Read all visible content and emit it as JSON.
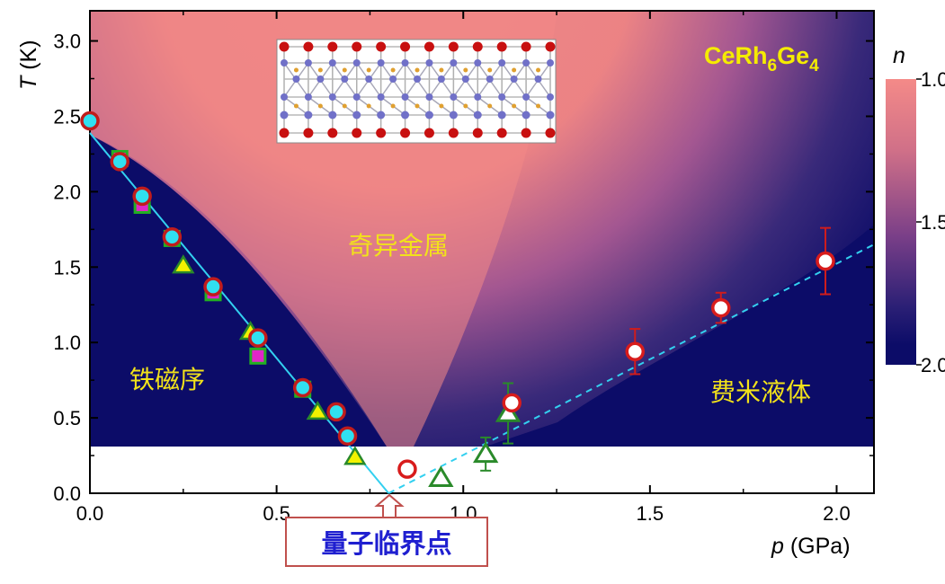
{
  "chart_data": {
    "type": "scatter",
    "compound_label": {
      "main": "CeRh",
      "sub1": "6",
      "mid": "Ge",
      "sub2": "4"
    },
    "xlabel": {
      "italic": "p",
      "unit": " (GPa)"
    },
    "ylabel": {
      "italic": "T",
      "unit": " (K)"
    },
    "xlim": [
      0,
      2.1
    ],
    "ylim": [
      0,
      3.2
    ],
    "xticks": [
      "0.0",
      "0.5",
      "1.0",
      "1.5",
      "2.0"
    ],
    "xtick_values": [
      0,
      0.5,
      1.0,
      1.5,
      2.0
    ],
    "yticks": [
      "0.0",
      "0.5",
      "1.0",
      "1.5",
      "2.0",
      "2.5",
      "3.0"
    ],
    "ytick_values": [
      0,
      0.5,
      1.0,
      1.5,
      2.0,
      2.5,
      3.0
    ],
    "colorbar": {
      "label": "n",
      "ticks": [
        "1.0",
        "1.5",
        "2.0"
      ],
      "tick_values": [
        1.0,
        1.5,
        2.0
      ],
      "range": [
        1.0,
        2.0
      ],
      "colors": [
        "#f48a88",
        "#9b4f8f",
        "#0c0c68"
      ]
    },
    "regions": {
      "strange_metal": "奇异金属",
      "ferromagnet": "铁磁序",
      "fermi_liquid": "费米液体"
    },
    "qcp_label": "量子临界点",
    "qcp": {
      "p": 0.8,
      "T": 0.0
    },
    "series": [
      {
        "marker": "circle-red-cyan",
        "points": [
          [
            0.0,
            2.47
          ],
          [
            0.08,
            2.2
          ],
          [
            0.14,
            1.97
          ],
          [
            0.22,
            1.7
          ],
          [
            0.33,
            1.37
          ],
          [
            0.45,
            1.03
          ],
          [
            0.57,
            0.7
          ],
          [
            0.66,
            0.54
          ],
          [
            0.69,
            0.38
          ]
        ]
      },
      {
        "marker": "square-green-magenta",
        "points": [
          [
            0.08,
            2.22
          ],
          [
            0.14,
            1.91
          ],
          [
            0.22,
            1.69
          ],
          [
            0.33,
            1.33
          ],
          [
            0.45,
            0.91
          ],
          [
            0.57,
            0.69
          ]
        ]
      },
      {
        "marker": "triangle-green-yellow",
        "points": [
          [
            0.25,
            1.51
          ],
          [
            0.43,
            1.07
          ],
          [
            0.61,
            0.54
          ],
          [
            0.71,
            0.24
          ]
        ]
      },
      {
        "marker": "circle-red-white",
        "points": [
          [
            0.85,
            0.16,
            0
          ],
          [
            1.13,
            0.6,
            0
          ],
          [
            1.46,
            0.94,
            0.15
          ],
          [
            1.69,
            1.23,
            0.1
          ],
          [
            1.97,
            1.54,
            0.22
          ]
        ]
      },
      {
        "marker": "triangle-green-white",
        "points": [
          [
            0.94,
            0.1,
            0
          ],
          [
            1.06,
            0.26,
            0.11
          ],
          [
            1.12,
            0.53,
            0.2
          ]
        ]
      }
    ],
    "fit_lines": [
      {
        "style": "solid",
        "points": [
          [
            0.0,
            2.39
          ],
          [
            0.8,
            0.0
          ]
        ]
      },
      {
        "style": "dashed",
        "points": [
          [
            0.8,
            0.0
          ],
          [
            2.1,
            1.65
          ]
        ]
      }
    ],
    "measurement_floor_T": 0.3
  }
}
